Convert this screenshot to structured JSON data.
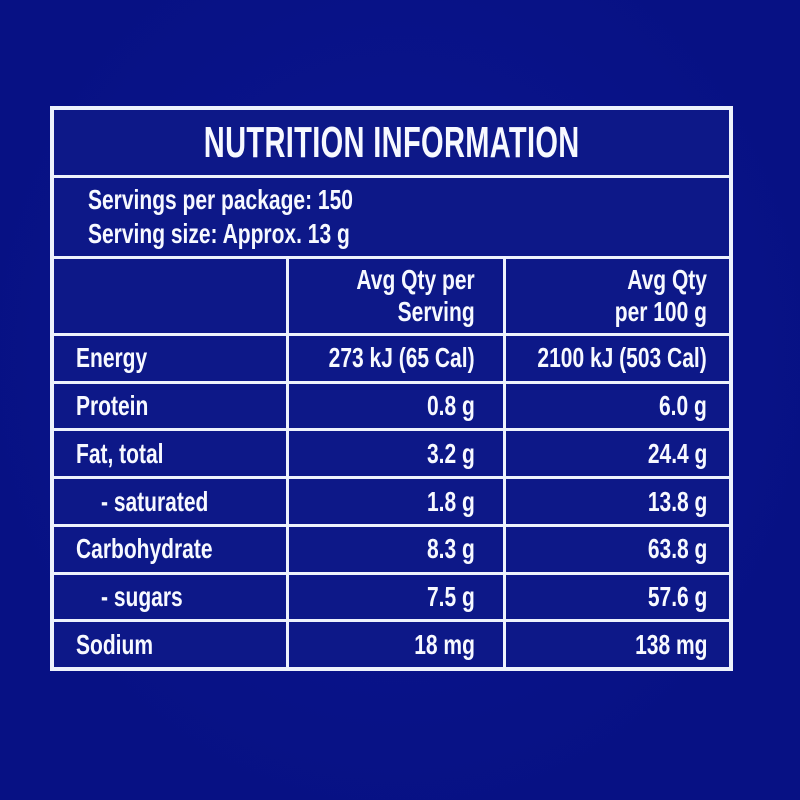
{
  "colors": {
    "page_bg": "#071184",
    "cell_bg": "#0d1888",
    "border": "#edf2fc",
    "text": "#f7f9ff"
  },
  "title": "NUTRITION INFORMATION",
  "serving_info": {
    "servings_per_package": "Servings per package: 150",
    "serving_size": "Serving size: Approx. 13 g"
  },
  "table": {
    "header": {
      "col1": "",
      "col2_line1": "Avg Qty per",
      "col2_line2": "Serving",
      "col3_line1": "Avg Qty",
      "col3_line2": "per 100 g"
    },
    "rows": [
      {
        "label": "Energy",
        "indent": false,
        "per_serving": "273 kJ (65 Cal)",
        "per_100g": "2100 kJ (503 Cal)"
      },
      {
        "label": "Protein",
        "indent": false,
        "per_serving": "0.8 g",
        "per_100g": "6.0 g"
      },
      {
        "label": "Fat, total",
        "indent": false,
        "per_serving": "3.2 g",
        "per_100g": "24.4 g"
      },
      {
        "label": "- saturated",
        "indent": true,
        "per_serving": "1.8 g",
        "per_100g": "13.8 g"
      },
      {
        "label": "Carbohydrate",
        "indent": false,
        "per_serving": "8.3 g",
        "per_100g": "63.8 g"
      },
      {
        "label": "- sugars",
        "indent": true,
        "per_serving": "7.5 g",
        "per_100g": "57.6 g"
      },
      {
        "label": "Sodium",
        "indent": false,
        "per_serving": "18 mg",
        "per_100g": "138 mg"
      }
    ]
  }
}
